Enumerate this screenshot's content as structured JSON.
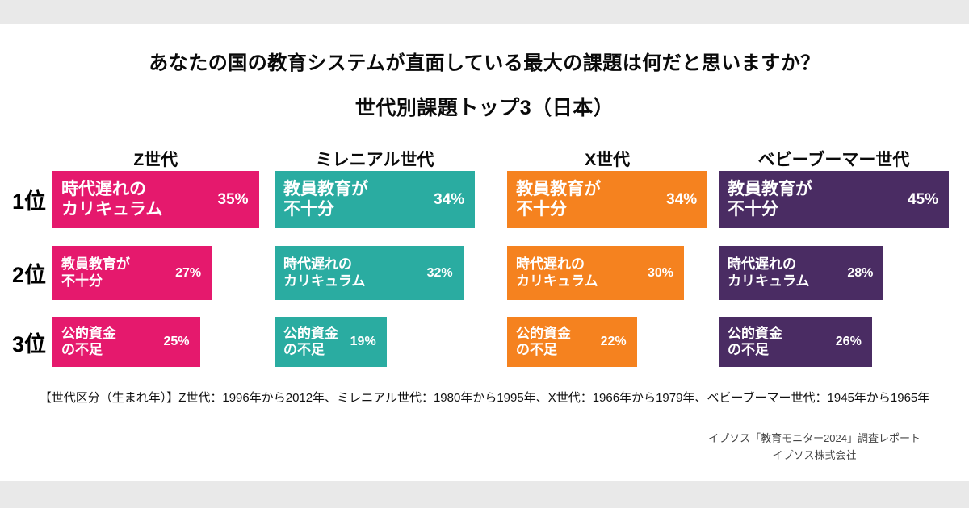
{
  "header": {
    "title": "あなたの国の教育システムが直面している最大の課題は何だと思いますか？",
    "subtitle": "世代別課題トップ3（日本）"
  },
  "chart_data": {
    "type": "bar",
    "orientation": "horizontal",
    "unit": "%",
    "value_range": [
      0,
      45
    ],
    "legend_position": "none",
    "grid": false,
    "rank_labels": [
      "1位",
      "2位",
      "3位"
    ],
    "series": [
      {
        "name": "Z世代",
        "color": "#e5196d",
        "items": [
          {
            "label": "時代遅れの\nカリキュラム",
            "value": 35,
            "value_label": "35%"
          },
          {
            "label": "教員教育が\n不十分",
            "value": 27,
            "value_label": "27%"
          },
          {
            "label": "公的資金\nの不足",
            "value": 25,
            "value_label": "25%"
          }
        ]
      },
      {
        "name": "ミレニアル世代",
        "color": "#2aaca1",
        "items": [
          {
            "label": "教員教育が\n不十分",
            "value": 34,
            "value_label": "34%"
          },
          {
            "label": "時代遅れの\nカリキュラム",
            "value": 32,
            "value_label": "32%"
          },
          {
            "label": "公的資金\nの不足",
            "value": 19,
            "value_label": "19%"
          }
        ]
      },
      {
        "name": "X世代",
        "color": "#f5821f",
        "items": [
          {
            "label": "教員教育が\n不十分",
            "value": 34,
            "value_label": "34%"
          },
          {
            "label": "時代遅れの\nカリキュラム",
            "value": 30,
            "value_label": "30%"
          },
          {
            "label": "公的資金\nの不足",
            "value": 22,
            "value_label": "22%"
          }
        ]
      },
      {
        "name": "ベビーブーマー世代",
        "color": "#4a2c63",
        "items": [
          {
            "label": "教員教育が\n不十分",
            "value": 45,
            "value_label": "45%"
          },
          {
            "label": "時代遅れの\nカリキュラム",
            "value": 28,
            "value_label": "28%"
          },
          {
            "label": "公的資金\nの不足",
            "value": 26,
            "value_label": "26%"
          }
        ]
      }
    ]
  },
  "footnote": "【世代区分（生まれ年）】Z世代：1996年から2012年、ミレニアル世代：1980年から1995年、X世代：1966年から1979年、ベビーブーマー世代：1945年から1965年",
  "source": {
    "line1": "イプソス「教育モニター2024」調査レポート",
    "line2": "イプソス株式会社"
  }
}
